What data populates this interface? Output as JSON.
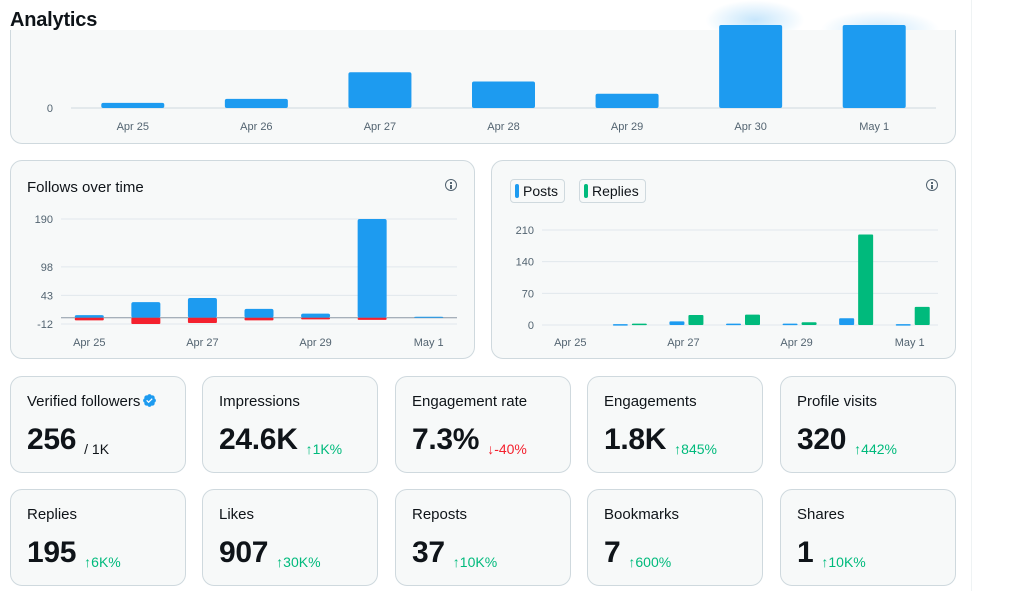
{
  "page": {
    "title": "Analytics"
  },
  "colors": {
    "posts": "#1d9bf0",
    "replies": "#00ba7c",
    "negative": "#f4212e",
    "up": "#00ba7c",
    "down": "#f4212e"
  },
  "top_chart": {
    "categories": [
      "Apr 25",
      "Apr 26",
      "Apr 27",
      "Apr 28",
      "Apr 29",
      "Apr 30",
      "May 1"
    ],
    "y_tick": "0"
  },
  "follows_chart": {
    "title": "Follows over time",
    "info_icon": "info-icon",
    "y_ticks": [
      "190",
      "98",
      "43",
      "-12"
    ],
    "x_ticks": [
      "Apr 25",
      "Apr 27",
      "Apr 29",
      "May 1"
    ]
  },
  "posts_replies_chart": {
    "legend": {
      "posts": "Posts",
      "replies": "Replies"
    },
    "info_icon": "info-icon",
    "y_ticks": [
      "210",
      "140",
      "70",
      "0"
    ],
    "x_ticks": [
      "Apr 25",
      "Apr 27",
      "Apr 29",
      "May 1"
    ]
  },
  "chart_data": [
    {
      "type": "bar",
      "title": "",
      "categories": [
        "Apr 25",
        "Apr 26",
        "Apr 27",
        "Apr 28",
        "Apr 29",
        "Apr 30",
        "May 1"
      ],
      "series": [
        {
          "values": [
            0.05,
            0.09,
            0.35,
            0.26,
            0.14,
            1.0,
            1.0
          ]
        }
      ],
      "note_values_are_relative": true,
      "grid": true
    },
    {
      "type": "bar",
      "title": "Follows over time",
      "categories": [
        "Apr 25",
        "Apr 26",
        "Apr 27",
        "Apr 28",
        "Apr 29",
        "Apr 30",
        "May 1"
      ],
      "series": [
        {
          "values": [
            5,
            30,
            38,
            17,
            8,
            190,
            2
          ]
        },
        {
          "values": [
            -5,
            -12,
            -10,
            -5,
            -3,
            -4,
            0
          ]
        }
      ],
      "yticks": [
        190,
        98,
        43,
        -12
      ],
      "ylim": [
        -12,
        190
      ],
      "grid": true
    },
    {
      "type": "bar",
      "title": "",
      "categories": [
        "Apr 25",
        "Apr 26",
        "Apr 27",
        "Apr 28",
        "Apr 29",
        "Apr 30",
        "May 1"
      ],
      "series": [
        {
          "name": "Posts",
          "values": [
            0,
            2,
            8,
            3,
            3,
            15,
            2
          ]
        },
        {
          "name": "Replies",
          "values": [
            0,
            3,
            22,
            23,
            6,
            200,
            40
          ]
        }
      ],
      "yticks": [
        210,
        140,
        70,
        0
      ],
      "ylim": [
        0,
        210
      ],
      "legend": "top-left",
      "grid": true
    }
  ],
  "stats": [
    {
      "label": "Verified followers",
      "value": "256",
      "suffix": "/ 1K",
      "badge": "verified-icon"
    },
    {
      "label": "Impressions",
      "value": "24.6K",
      "delta": "1K%",
      "dir": "up"
    },
    {
      "label": "Engagement rate",
      "value": "7.3%",
      "delta": "-40%",
      "dir": "down"
    },
    {
      "label": "Engagements",
      "value": "1.8K",
      "delta": "845%",
      "dir": "up"
    },
    {
      "label": "Profile visits",
      "value": "320",
      "delta": "442%",
      "dir": "up"
    },
    {
      "label": "Replies",
      "value": "195",
      "delta": "6K%",
      "dir": "up"
    },
    {
      "label": "Likes",
      "value": "907",
      "delta": "30K%",
      "dir": "up"
    },
    {
      "label": "Reposts",
      "value": "37",
      "delta": "10K%",
      "dir": "up"
    },
    {
      "label": "Bookmarks",
      "value": "7",
      "delta": "600%",
      "dir": "up"
    },
    {
      "label": "Shares",
      "value": "1",
      "delta": "10K%",
      "dir": "up"
    }
  ]
}
